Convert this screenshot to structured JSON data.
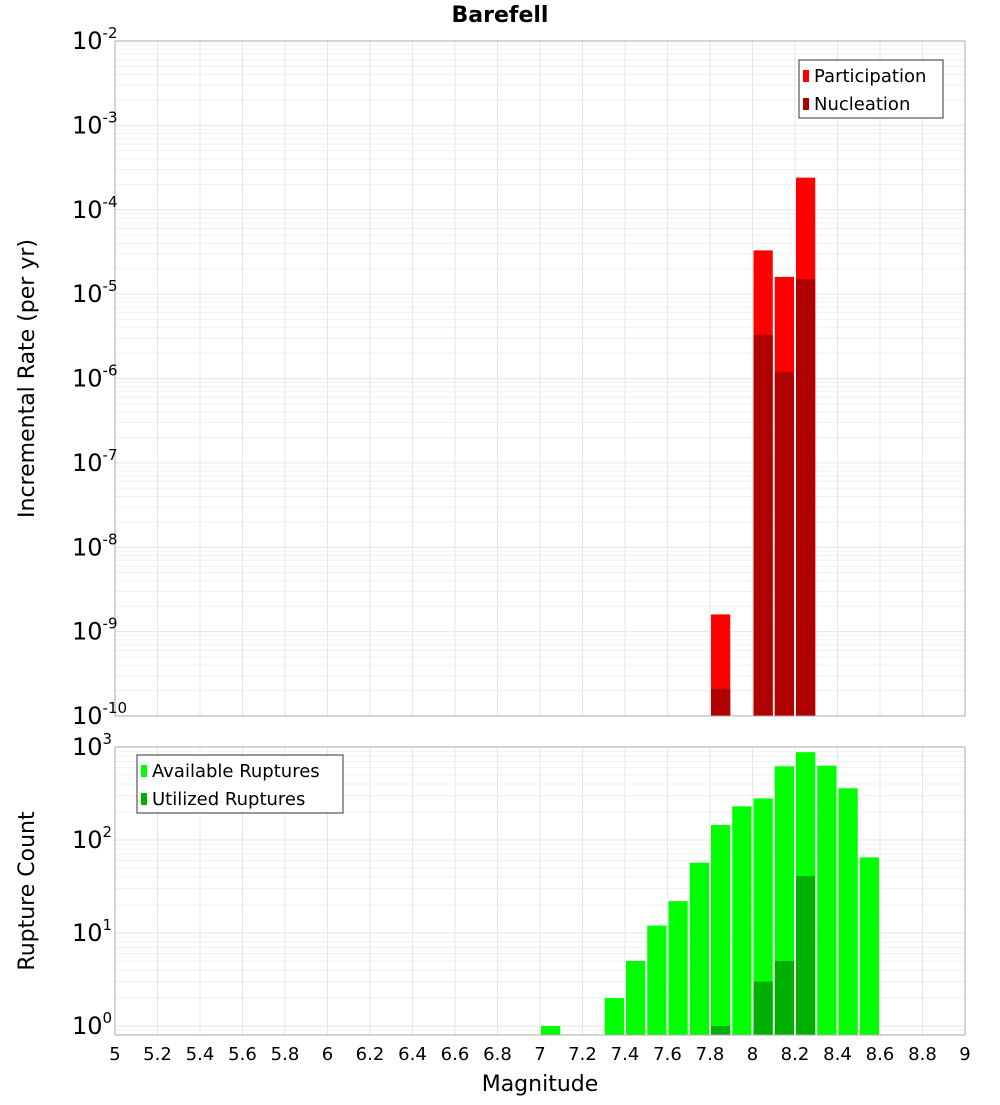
{
  "chart_data": [
    {
      "type": "bar",
      "title": "Barefell",
      "xlabel": "",
      "ylabel": "Incremental Rate (per yr)",
      "yscale": "log",
      "ylim": [
        1e-10,
        0.01
      ],
      "xlim": [
        5,
        9
      ],
      "bar_width": 0.1,
      "x": [
        7.85,
        8.05,
        8.15,
        8.25
      ],
      "series": [
        {
          "name": "Participation",
          "color": "#ff0000",
          "values": [
            1.6e-09,
            3.3e-05,
            1.6e-05,
            0.00024
          ]
        },
        {
          "name": "Nucleation",
          "color": "#b00000",
          "values": [
            2.1e-10,
            3.3e-06,
            1.2e-06,
            1.5e-05
          ]
        }
      ],
      "ytick_exponents": [
        -10,
        -9,
        -8,
        -7,
        -6,
        -5,
        -4,
        -3,
        -2
      ],
      "legend_position": "top-right",
      "grid": true
    },
    {
      "type": "bar",
      "xlabel": "Magnitude",
      "ylabel": "Rupture Count",
      "yscale": "log",
      "ylim": [
        0.8,
        1000
      ],
      "xlim": [
        5,
        9
      ],
      "bar_width": 0.1,
      "x": [
        7.05,
        7.35,
        7.45,
        7.55,
        7.65,
        7.75,
        7.85,
        7.95,
        8.05,
        8.15,
        8.25,
        8.35,
        8.45,
        8.55
      ],
      "series": [
        {
          "name": "Available Ruptures",
          "color": "#00ff00",
          "values": [
            1,
            2,
            5,
            12,
            22,
            57,
            145,
            230,
            280,
            620,
            880,
            630,
            360,
            65
          ]
        },
        {
          "name": "Utilized Ruptures",
          "color": "#00b000",
          "values": [
            0,
            0,
            0,
            0,
            0,
            0,
            1,
            0,
            3,
            5,
            41,
            0,
            0,
            0
          ]
        }
      ],
      "ytick_exponents": [
        0,
        1,
        2,
        3
      ],
      "xticks": [
        "5",
        "5.2",
        "5.4",
        "5.6",
        "5.8",
        "6",
        "6.2",
        "6.4",
        "6.6",
        "6.8",
        "7",
        "7.2",
        "7.4",
        "7.6",
        "7.8",
        "8",
        "8.2",
        "8.4",
        "8.6",
        "8.8",
        "9"
      ],
      "legend_position": "top-left",
      "grid": true
    }
  ]
}
